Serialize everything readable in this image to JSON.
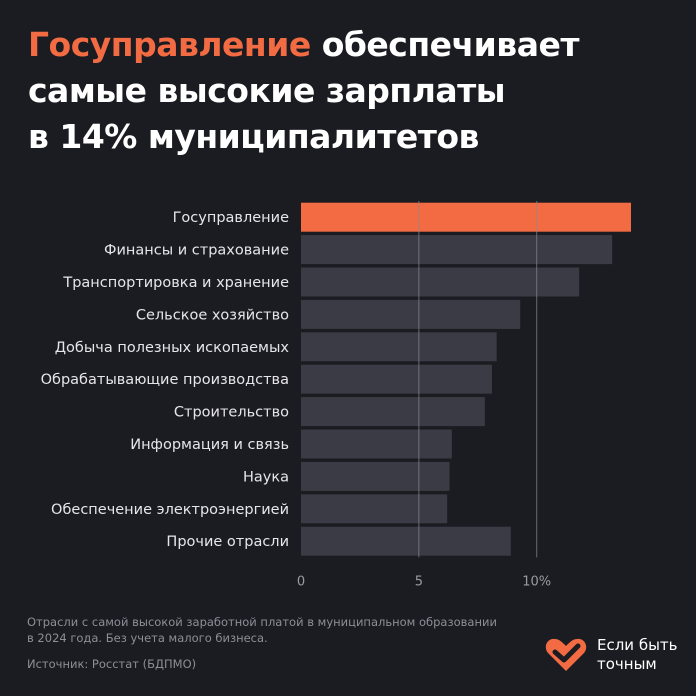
{
  "header": {
    "title_accent": "Госуправление",
    "title_line1_rest": " обеспечивает",
    "title_line2": "самые высокие зарплаты",
    "title_line3": "в 14% муниципалитетов"
  },
  "chart_data": {
    "type": "bar",
    "orientation": "horizontal",
    "categories": [
      "Госуправление",
      "Финансы и страхование",
      "Транспортировка и хранение",
      "Сельское хозяйство",
      "Добыча полезных ископаемых",
      "Обрабатывающие производства",
      "Строительство",
      "Информация и связь",
      "Наука",
      "Обеспечение электроэнергией",
      "Прочие отрасли"
    ],
    "values": [
      14.0,
      13.2,
      11.8,
      9.3,
      8.3,
      8.1,
      7.8,
      6.4,
      6.3,
      6.2,
      8.9
    ],
    "xlim": [
      0,
      14
    ],
    "xticks": [
      0,
      5,
      10
    ],
    "xtick_labels": [
      "0",
      "5",
      "10%"
    ],
    "grid": "vertical",
    "highlight_color": "#f26b43",
    "bar_color": "#3b3b45",
    "grid_color": "#8a8a94"
  },
  "footnote": {
    "line1": "Отрасли с самой высокой заработной платой в муниципальном образовании",
    "line2": "в 2024 года. Без учета малого бизнеса."
  },
  "source": "Источник: Росстат (БДПМО)",
  "brand": {
    "line1": "Если быть",
    "line2": "точным",
    "icon": "heart-check-logo",
    "color": "#f26b43"
  }
}
